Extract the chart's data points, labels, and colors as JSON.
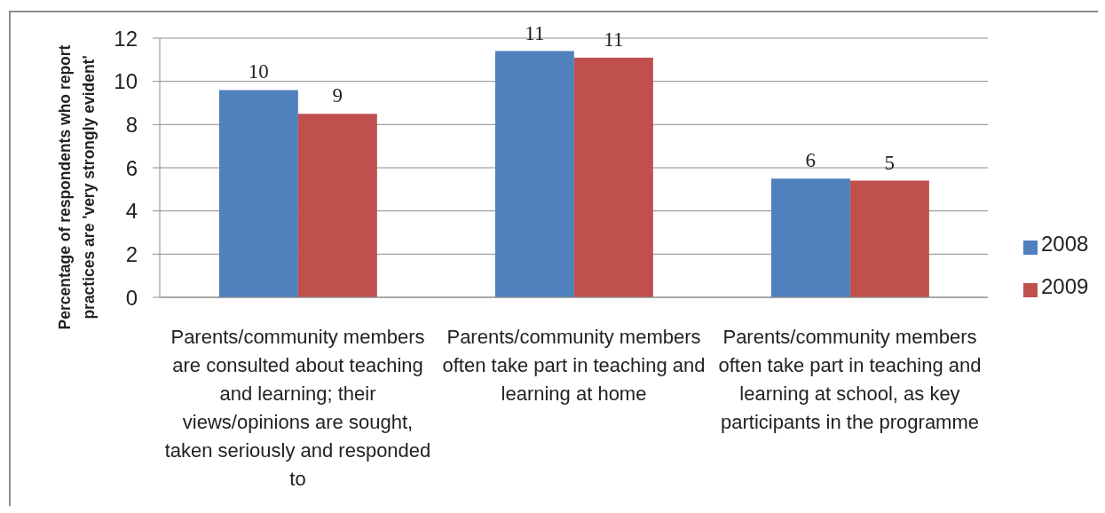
{
  "chart_data": {
    "type": "bar",
    "ylabel": "Percentage of respondents who report practices are 'very strongly evident'",
    "categories": [
      "Parents/community members are consulted about teaching and learning; their views/opinions are sought, taken seriously and responded to",
      "Parents/community members often take part in teaching and learning at home",
      "Parents/community members often take part in teaching and learning at school, as key participants in the programme"
    ],
    "series": [
      {
        "name": "2008",
        "color": "#4f81bd",
        "values": [
          9.6,
          11.4,
          5.5
        ],
        "value_labels": [
          "10",
          "11",
          "6"
        ]
      },
      {
        "name": "2009",
        "color": "#c0504d",
        "values": [
          8.5,
          11.1,
          5.4
        ],
        "value_labels": [
          "9",
          "11",
          "5"
        ]
      }
    ],
    "ylim": [
      0,
      12
    ],
    "yticks": [
      0,
      2,
      4,
      6,
      8,
      10,
      12
    ],
    "grid": "y",
    "legend": "right"
  }
}
